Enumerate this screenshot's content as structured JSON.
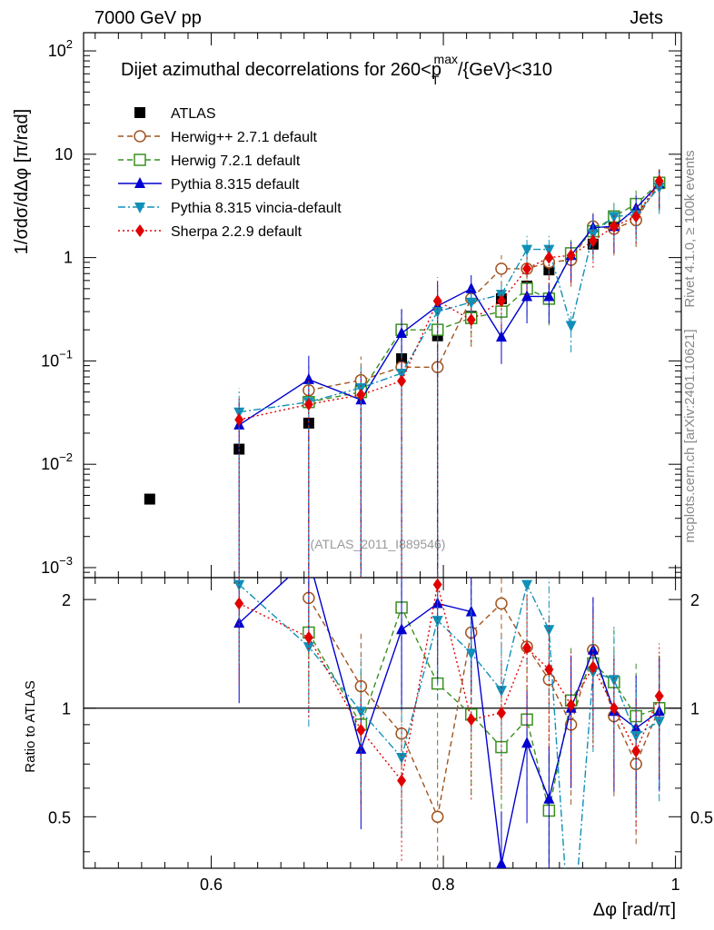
{
  "header": {
    "left": "7000 GeV pp",
    "right": "Jets"
  },
  "side_labels": {
    "top": "Rivet 4.1.0, ≥ 100k events",
    "bottom": "mcplots.cern.ch [arXiv:2401.10621]"
  },
  "watermark": "(ATLAS_2011_I889546)",
  "chart_data": {
    "type": "scatter",
    "title": "Dijet azimuthal decorrelations for 260<p_T^max/{GeV}<310",
    "title_parts": {
      "pre": "Dijet azimuthal decorrelations for 260<p",
      "sub": "T",
      "sup": "max",
      "post": "/{GeV}<310"
    },
    "xlabel": "Δφ [rad/π]",
    "ylabel": "1/σdσ/dΔφ [π/rad]",
    "ratio_ylabel": "Ratio to ATLAS",
    "xlim": [
      0.49,
      1.005
    ],
    "ylim": [
      0.0008,
      150
    ],
    "yscale": "log",
    "ratio_ylim": [
      0.36,
      2.3
    ],
    "ratio_yscale": "log",
    "x_ticks": [
      "0.6",
      "0.8",
      "1"
    ],
    "y_ticks": [
      {
        "base": "10",
        "exp": "2"
      },
      {
        "base": "10",
        "exp": ""
      },
      {
        "base": "1",
        "exp": ""
      },
      {
        "base": "10",
        "exp": "−1"
      },
      {
        "base": "10",
        "exp": "−2"
      },
      {
        "base": "10",
        "exp": "−3"
      }
    ],
    "ratio_ticks": [
      "2",
      "1",
      "0.5"
    ],
    "x": [
      0.547,
      0.624,
      0.684,
      0.729,
      0.764,
      0.795,
      0.824,
      0.85,
      0.872,
      0.891,
      0.91,
      0.929,
      0.947,
      0.966,
      0.986
    ],
    "series": [
      {
        "name": "ATLAS",
        "color": "#000000",
        "marker": "square",
        "values": [
          0.0046,
          0.014,
          0.025,
          0.055,
          0.105,
          0.175,
          0.27,
          0.4,
          0.53,
          0.76,
          1.05,
          1.35,
          2.05,
          3.2,
          5.2
        ]
      },
      {
        "name": "Herwig++ 2.7.1 default",
        "color": "#a0541e",
        "marker": "circle-open",
        "dash": "6,4",
        "values": [
          null,
          null,
          0.052,
          0.065,
          0.087,
          0.087,
          0.4,
          0.78,
          0.78,
          0.9,
          0.95,
          2.0,
          1.9,
          2.3,
          5.3
        ]
      },
      {
        "name": "Herwig 7.2.1 default",
        "color": "#3a9020",
        "marker": "square-open",
        "dash": "6,4",
        "values": [
          null,
          null,
          0.04,
          0.05,
          0.2,
          0.2,
          0.26,
          0.3,
          0.5,
          0.4,
          1.1,
          1.8,
          2.5,
          3.3,
          5.3
        ]
      },
      {
        "name": "Pythia 8.315 default",
        "color": "#0000d0",
        "marker": "triangle-up",
        "values": [
          null,
          0.024,
          0.066,
          0.042,
          0.185,
          0.34,
          0.5,
          0.17,
          0.42,
          0.42,
          1.05,
          1.95,
          2.0,
          3.0,
          5.2
        ]
      },
      {
        "name": "Pythia 8.315 vincia-default",
        "color": "#1090b8",
        "marker": "triangle-down",
        "dash": "8,3,2,3",
        "values": [
          null,
          0.032,
          0.04,
          0.055,
          0.076,
          0.3,
          0.37,
          0.44,
          1.2,
          1.2,
          0.22,
          1.7,
          2.5,
          2.6,
          4.8
        ]
      },
      {
        "name": "Sherpa 2.2.9 default",
        "color": "#e00000",
        "marker": "diamond",
        "dash": "2,3",
        "values": [
          null,
          0.027,
          0.038,
          0.047,
          0.064,
          0.38,
          0.25,
          0.38,
          0.78,
          1.0,
          1.05,
          1.45,
          2.0,
          2.5,
          5.5
        ]
      }
    ],
    "ratios": [
      {
        "name": "Herwig++ 2.7.1 default",
        "values": [
          null,
          null,
          2.02,
          1.15,
          0.85,
          0.5,
          1.62,
          1.95,
          1.48,
          1.2,
          0.9,
          1.45,
          0.95,
          0.7,
          1.0
        ]
      },
      {
        "name": "Herwig 7.2.1 default",
        "values": [
          null,
          null,
          1.62,
          0.9,
          1.9,
          1.17,
          0.96,
          0.78,
          0.93,
          0.52,
          1.05,
          1.33,
          1.18,
          0.95,
          1.0
        ]
      },
      {
        "name": "Pythia 8.315 default",
        "values": [
          null,
          1.72,
          2.6,
          0.77,
          1.65,
          1.95,
          1.85,
          0.37,
          0.8,
          0.56,
          1.0,
          1.45,
          0.98,
          0.88,
          0.98
        ]
      },
      {
        "name": "Pythia 8.315 vincia-default",
        "values": [
          null,
          2.2,
          1.48,
          0.98,
          0.73,
          1.75,
          1.42,
          1.12,
          2.2,
          1.65,
          0.2,
          1.26,
          1.2,
          0.84,
          0.92
        ]
      },
      {
        "name": "Sherpa 2.2.9 default",
        "values": [
          null,
          1.95,
          1.57,
          0.87,
          0.63,
          2.2,
          0.93,
          0.97,
          1.47,
          1.28,
          1.02,
          1.3,
          1.0,
          0.76,
          1.08
        ]
      }
    ]
  }
}
